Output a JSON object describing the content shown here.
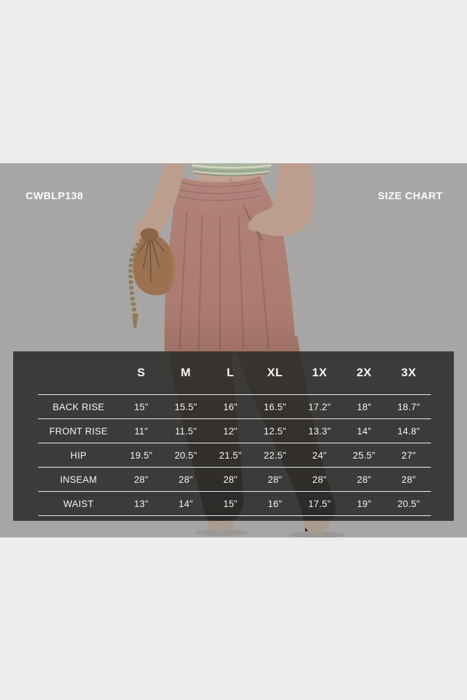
{
  "product": {
    "code": "CWBLP138"
  },
  "chart_data": {
    "type": "table",
    "title": "SIZE CHART",
    "columns": [
      "S",
      "M",
      "L",
      "XL",
      "1X",
      "2X",
      "3X"
    ],
    "rows": [
      {
        "label": "BACK RISE",
        "values": [
          "15\"",
          "15.5\"",
          "16\"",
          "16.5\"",
          "17.2\"",
          "18\"",
          "18.7\""
        ]
      },
      {
        "label": "FRONT RISE",
        "values": [
          "11\"",
          "11.5\"",
          "12\"",
          "12.5\"",
          "13.3\"",
          "14\"",
          "14.8\""
        ]
      },
      {
        "label": "HIP",
        "values": [
          "19.5\"",
          "20.5\"",
          "21.5\"",
          "22.5\"",
          "24\"",
          "25.5\"",
          "27\""
        ]
      },
      {
        "label": "INSEAM",
        "values": [
          "28\"",
          "28\"",
          "28\"",
          "28\"",
          "28\"",
          "28\"",
          "28\""
        ]
      },
      {
        "label": "WAIST",
        "values": [
          "13\"",
          "14\"",
          "15\"",
          "16\"",
          "17.5\"",
          "19\"",
          "20.5\""
        ]
      }
    ],
    "layout": {
      "grid": "horizontal-rules-only",
      "header_position": "top",
      "label_column_position": "left"
    }
  },
  "colors": {
    "margin_band": "#ededed",
    "photo_band_bg": "#a8a6a4",
    "table_overlay": "#2b2a29",
    "table_text": "#f6f6f6",
    "label_text": "#fbfbfb",
    "pants": "#b28379",
    "pants_dark": "#3a2e27",
    "skin": "#bc9e8f",
    "crop_top": "#a9b49c",
    "handbag": "#9b7251",
    "chain": "#8f7c57",
    "shoe_toe": "#aa9c8f"
  }
}
